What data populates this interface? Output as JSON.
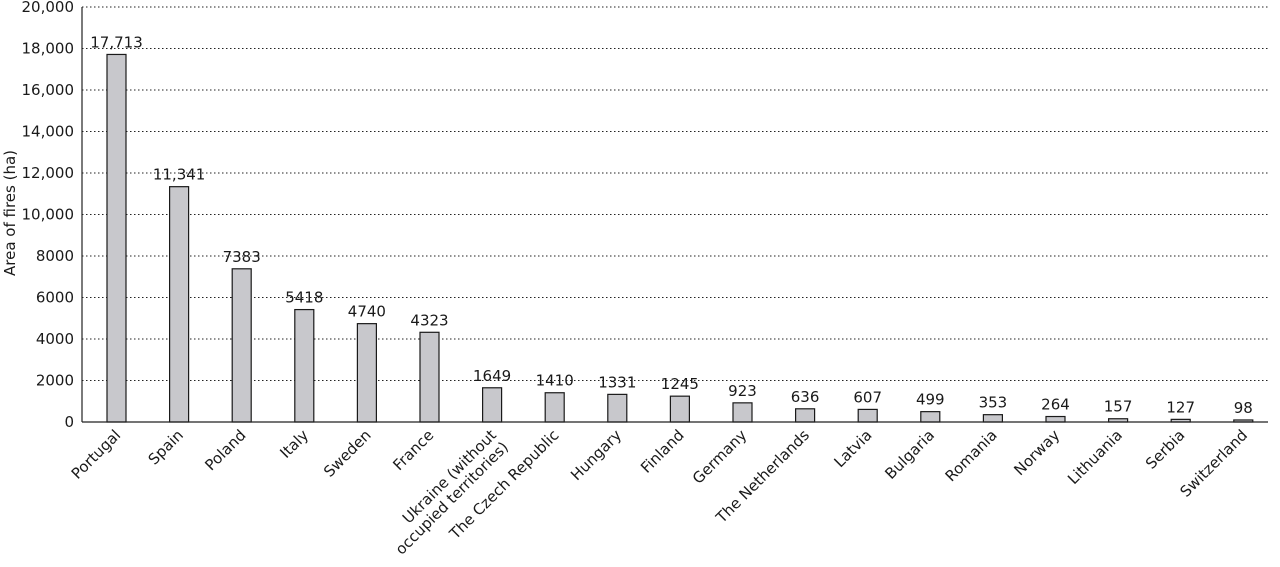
{
  "chart_data": {
    "type": "bar",
    "ylabel": "Area of fires (ha)",
    "xlabel": "",
    "ylim": [
      0,
      20000
    ],
    "yticks": [
      0,
      2000,
      4000,
      6000,
      8000,
      10000,
      12000,
      14000,
      16000,
      18000,
      20000
    ],
    "ytick_labels": [
      "0",
      "2000",
      "4000",
      "6000",
      "8000",
      "10,000",
      "12,000",
      "14,000",
      "16,000",
      "18,000",
      "20,000"
    ],
    "grid": "horizontal dotted",
    "categories": [
      "Portugal",
      "Spain",
      "Poland",
      "Italy",
      "Sweden",
      "France",
      "Ukraine (without\noccupied territories)",
      "The Czech Republic",
      "Hungary",
      "Finland",
      "Germany",
      "The Netherlands",
      "Latvia",
      "Bulgaria",
      "Romania",
      "Norway",
      "Lithuania",
      "Serbia",
      "Switzerland"
    ],
    "values": [
      17713,
      11341,
      7383,
      5418,
      4740,
      4323,
      1649,
      1410,
      1331,
      1245,
      923,
      636,
      607,
      499,
      353,
      264,
      157,
      127,
      98
    ],
    "data_labels": [
      "17,713",
      "11,341",
      "7383",
      "5418",
      "4740",
      "4323",
      "1649",
      "1410",
      "1331",
      "1245",
      "923",
      "636",
      "607",
      "499",
      "353",
      "264",
      "157",
      "127",
      "98"
    ],
    "bar_color": "#c8c8cc",
    "edge_color": "#1a1a1a"
  }
}
